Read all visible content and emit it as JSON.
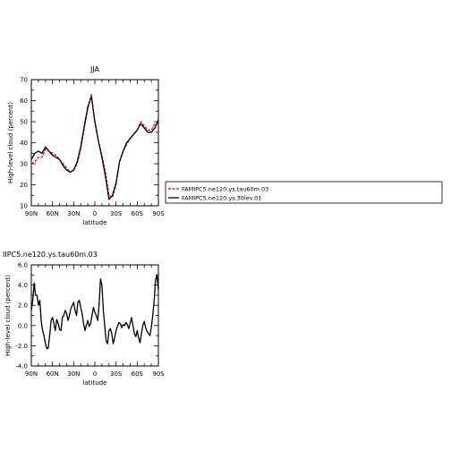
{
  "chart_data": [
    {
      "type": "line",
      "title": "JJA",
      "xlabel": "latitude",
      "ylabel": "High-level cloud (percent)",
      "xlim": [
        90,
        -90
      ],
      "ylim": [
        10,
        70
      ],
      "x_ticks": [
        90,
        60,
        30,
        0,
        -30,
        -60,
        -90
      ],
      "x_tick_labels": [
        "90N",
        "60N",
        "30N",
        "0",
        "30S",
        "60S",
        "90S"
      ],
      "y_ticks": [
        10,
        20,
        30,
        40,
        50,
        60,
        70
      ],
      "y_tick_labels": [
        "10",
        "20",
        "30",
        "40",
        "50",
        "60",
        "70"
      ],
      "legend_position": "right, outside",
      "series": [
        {
          "name": "FAMIPC5.ne120.ys.tau60m.03",
          "color": "#dd0000",
          "dashed": true,
          "x": [
            90,
            85,
            80,
            75,
            70,
            65,
            60,
            55,
            50,
            45,
            40,
            35,
            30,
            25,
            20,
            15,
            10,
            5,
            0,
            -5,
            -10,
            -15,
            -20,
            -25,
            -30,
            -35,
            -40,
            -45,
            -50,
            -55,
            -60,
            -65,
            -70,
            -75,
            -80,
            -85,
            -90
          ],
          "values": [
            30,
            31,
            33,
            33,
            37,
            36,
            35,
            34,
            32,
            30,
            28,
            26,
            27,
            30,
            37,
            47,
            56,
            63,
            50,
            41,
            34,
            26,
            15,
            14,
            20,
            31,
            36,
            39,
            42,
            44,
            46,
            50,
            48,
            46,
            46,
            49,
            49
          ]
        },
        {
          "name": "FAMIPC5.ne120.ys.30lev.01",
          "color": "#000000",
          "dashed": false,
          "x": [
            90,
            85,
            80,
            75,
            70,
            65,
            60,
            55,
            50,
            45,
            40,
            35,
            30,
            25,
            20,
            15,
            10,
            5,
            0,
            -5,
            -10,
            -15,
            -20,
            -25,
            -30,
            -35,
            -40,
            -45,
            -50,
            -55,
            -60,
            -65,
            -70,
            -75,
            -80,
            -85,
            -90
          ],
          "values": [
            32,
            35,
            36,
            35,
            38,
            36,
            34,
            33,
            32,
            29,
            27,
            26,
            27,
            31,
            38,
            48,
            57,
            62,
            50,
            41,
            33,
            24,
            13,
            15,
            21,
            31,
            36,
            40,
            42,
            44,
            46,
            49,
            47,
            45,
            45,
            47,
            51
          ]
        }
      ]
    },
    {
      "type": "line",
      "title": "IIPC5.ne120.ys.tau60m.03",
      "xlabel": "latitude",
      "ylabel": "High-level cloud (percent)",
      "xlim": [
        90,
        -90
      ],
      "ylim": [
        -4,
        6
      ],
      "x_ticks": [
        90,
        60,
        30,
        0,
        -30,
        -60,
        -90
      ],
      "x_tick_labels": [
        "90N",
        "60N",
        "30N",
        "0",
        "30S",
        "60S",
        "90S"
      ],
      "y_ticks": [
        -4,
        -2,
        0,
        2,
        4,
        6
      ],
      "y_tick_labels": [
        "-4.0",
        "-2.0",
        "0.0",
        "2.0",
        "4.0",
        "6.0"
      ],
      "series": [
        {
          "color": "#000000",
          "x": [
            90,
            88,
            86,
            84,
            82,
            80,
            78,
            76,
            74,
            72,
            70,
            68,
            66,
            64,
            62,
            60,
            58,
            56,
            54,
            52,
            50,
            48,
            46,
            44,
            42,
            40,
            38,
            36,
            34,
            32,
            30,
            28,
            26,
            24,
            22,
            20,
            18,
            16,
            14,
            12,
            10,
            8,
            6,
            4,
            2,
            0,
            -2,
            -4,
            -6,
            -8,
            -10,
            -12,
            -14,
            -16,
            -18,
            -20,
            -22,
            -24,
            -26,
            -28,
            -30,
            -32,
            -34,
            -36,
            -38,
            -40,
            -42,
            -44,
            -46,
            -48,
            -50,
            -52,
            -54,
            -56,
            -58,
            -60,
            -62,
            -64,
            -66,
            -68,
            -70,
            -72,
            -74,
            -76,
            -78,
            -80,
            -82,
            -84,
            -86,
            -88,
            -90
          ],
          "values": [
            1.5,
            2.5,
            4.2,
            3.0,
            3.0,
            2.0,
            2.5,
            0.5,
            -0.5,
            -1.0,
            -1.8,
            -2.3,
            -2.2,
            -1.0,
            0.5,
            0.8,
            0.2,
            -0.5,
            0.6,
            0.2,
            -0.4,
            -0.5,
            0.8,
            1.0,
            1.5,
            1.2,
            0.5,
            1.0,
            1.7,
            2.0,
            2.3,
            1.5,
            1.0,
            2.3,
            2.5,
            1.8,
            1.2,
            0.2,
            -0.5,
            0.0,
            0.5,
            -0.1,
            0.2,
            1.0,
            1.8,
            1.3,
            1.0,
            0.5,
            2.0,
            4.6,
            4.0,
            1.5,
            0.0,
            -1.5,
            -1.8,
            -0.5,
            -0.3,
            -0.8,
            -1.8,
            -1.2,
            -0.5,
            -0.1,
            0.3,
            0.2,
            -0.2,
            0.1,
            0.0,
            0.3,
            0.1,
            -0.3,
            0.2,
            0.8,
            0.0,
            -0.8,
            -1.1,
            -0.5,
            -1.2,
            -1.7,
            -0.8,
            0.0,
            0.4,
            -0.2,
            -0.6,
            -0.8,
            -1.0,
            -0.2,
            1.0,
            2.5,
            4.5,
            5.0,
            3.5
          ]
        }
      ]
    }
  ]
}
